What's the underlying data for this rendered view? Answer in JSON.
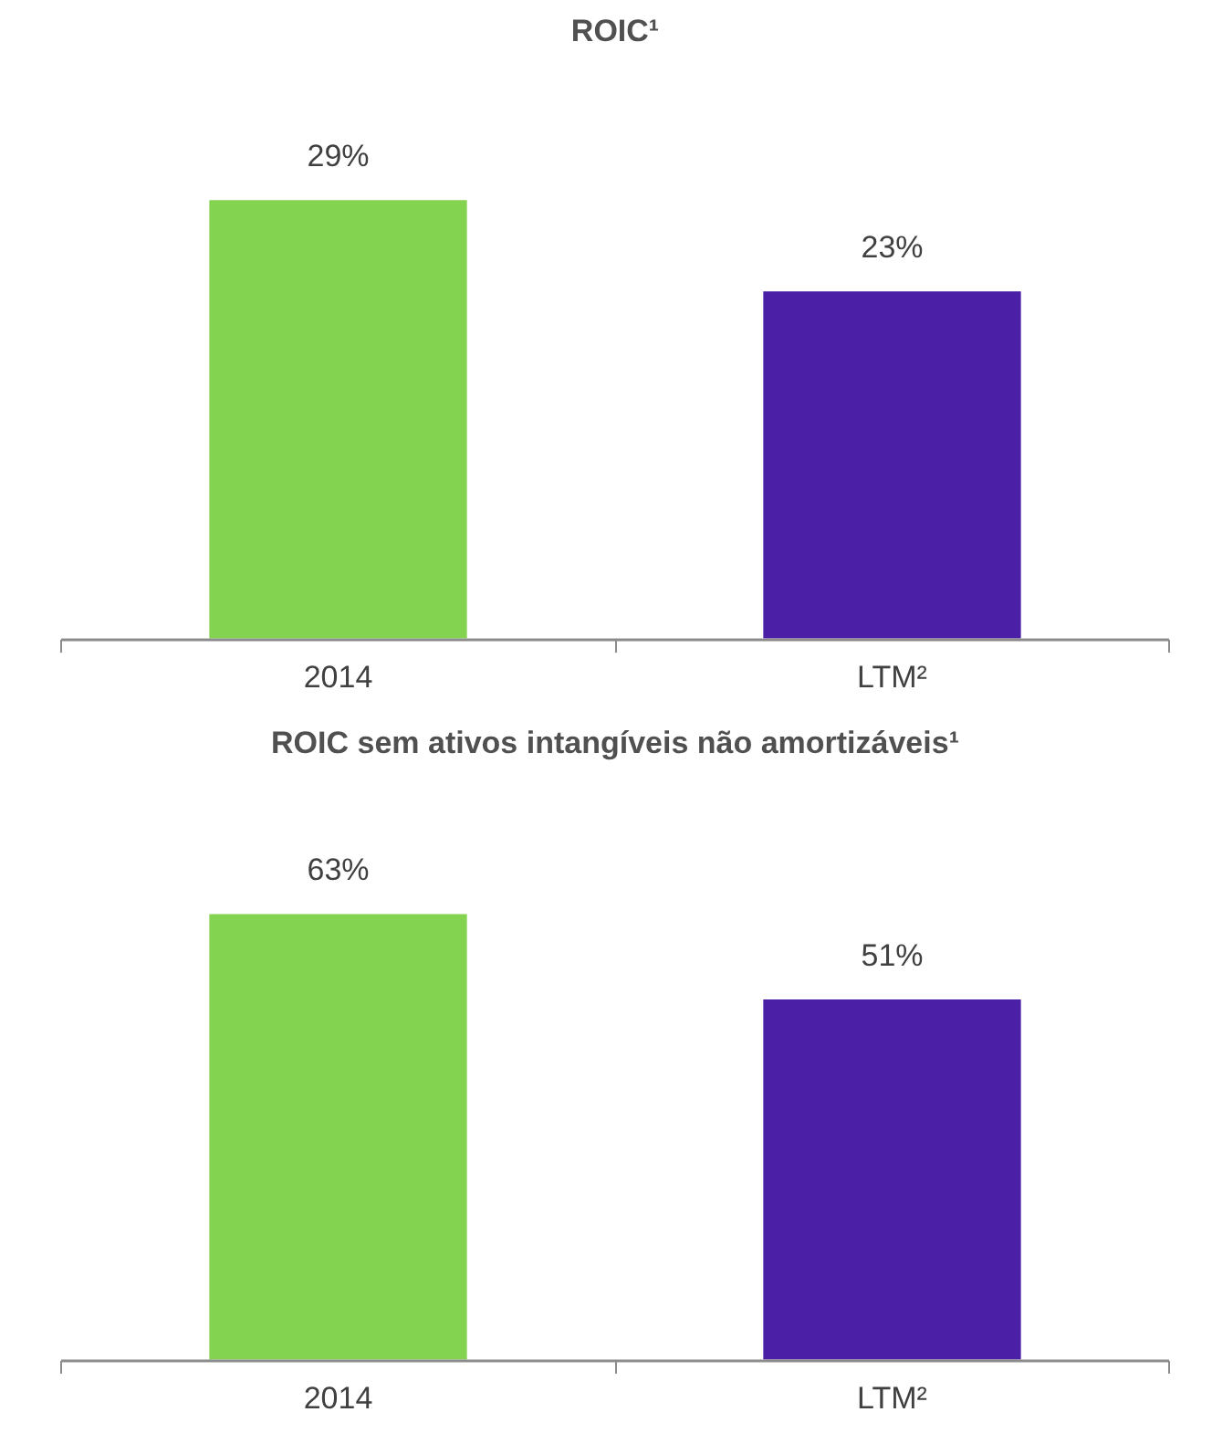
{
  "chart_data": [
    {
      "type": "bar",
      "title": "ROIC¹",
      "categories": [
        "2014",
        "LTM²"
      ],
      "values": [
        29,
        23
      ],
      "colors": [
        "#84d350",
        "#4b1fa6"
      ],
      "value_labels": [
        "29%",
        "23%"
      ],
      "grid": false
    },
    {
      "type": "bar",
      "title": "ROIC sem ativos intangíveis não amortizáveis¹",
      "categories": [
        "2014",
        "LTM²"
      ],
      "values": [
        63,
        51
      ],
      "colors": [
        "#84d350",
        "#4b1fa6"
      ],
      "value_labels": [
        "63%",
        "51%"
      ],
      "grid": false
    }
  ]
}
